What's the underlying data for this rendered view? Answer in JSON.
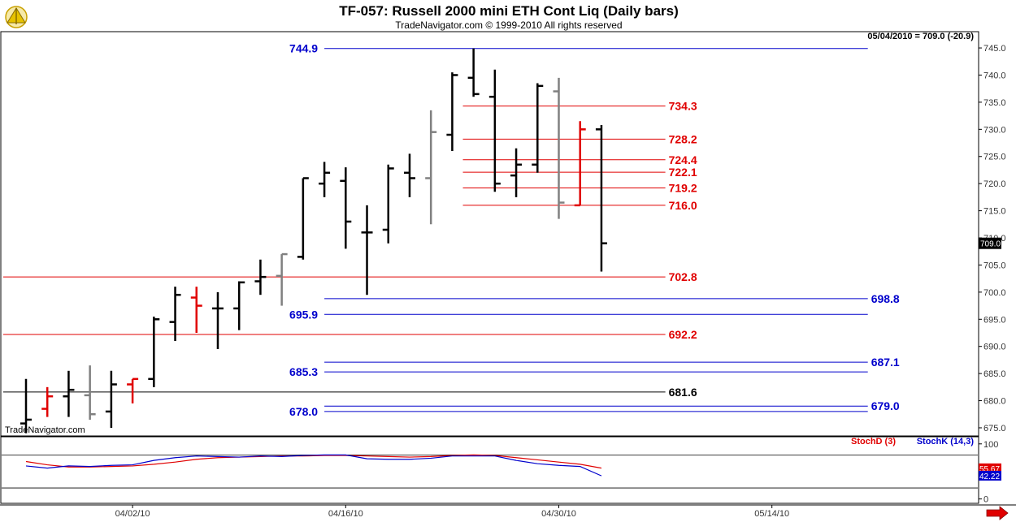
{
  "header": {
    "title": "TF-057:  Russell 2000 mini ETH Cont Liq  (Daily bars)",
    "subtitle": "TradeNavigator.com © 1999-2010 All rights reserved",
    "last_info": "05/04/2010 = 709.0 (-20.9)",
    "watermark": "TradeNavigator.com"
  },
  "colors": {
    "up": "#000000",
    "down": "#e00000",
    "inside": "#808080",
    "support": "#0000cc",
    "resistance": "#e00000",
    "neutral": "#000000"
  },
  "chart_data": [
    {
      "type": "ohlc",
      "title": "TF-057:  Russell 2000 mini ETH Cont Liq  (Daily bars)",
      "y_ticks": [
        675.0,
        680.0,
        685.0,
        690.0,
        695.0,
        700.0,
        705.0,
        710.0,
        715.0,
        720.0,
        725.0,
        730.0,
        735.0,
        740.0,
        745.0
      ],
      "ylim": [
        673.5,
        748.0
      ],
      "last_price_label": "709.0",
      "x_labels": [
        {
          "index": 5,
          "label": "04/02/10"
        },
        {
          "index": 15,
          "label": "04/16/10"
        },
        {
          "index": 25,
          "label": "04/30/10"
        },
        {
          "index": 35,
          "label": "05/14/10"
        }
      ],
      "bars": [
        {
          "open": 675.8,
          "high": 684.0,
          "low": 674.0,
          "close": 676.5,
          "color": "black"
        },
        {
          "open": 678.5,
          "high": 682.5,
          "low": 677.0,
          "close": 680.8,
          "color": "red"
        },
        {
          "open": 680.8,
          "high": 685.5,
          "low": 677.0,
          "close": 682.0,
          "color": "black"
        },
        {
          "open": 681.0,
          "high": 686.5,
          "low": 676.5,
          "close": 677.5,
          "color": "gray"
        },
        {
          "open": 678.0,
          "high": 685.5,
          "low": 675.0,
          "close": 683.0,
          "color": "black"
        },
        {
          "open": 683.0,
          "high": 684.0,
          "low": 679.5,
          "close": 684.0,
          "color": "red"
        },
        {
          "open": 684.0,
          "high": 695.5,
          "low": 682.5,
          "close": 695.0,
          "color": "black"
        },
        {
          "open": 694.5,
          "high": 701.0,
          "low": 691.0,
          "close": 699.5,
          "color": "black"
        },
        {
          "open": 699.0,
          "high": 701.0,
          "low": 692.5,
          "close": 697.5,
          "color": "red"
        },
        {
          "open": 697.0,
          "high": 700.0,
          "low": 689.5,
          "close": 697.0,
          "color": "black"
        },
        {
          "open": 697.0,
          "high": 702.0,
          "low": 693.0,
          "close": 701.8,
          "color": "black"
        },
        {
          "open": 702.0,
          "high": 706.0,
          "low": 699.5,
          "close": 702.8,
          "color": "black"
        },
        {
          "open": 703.0,
          "high": 707.0,
          "low": 697.5,
          "close": 707.0,
          "color": "gray"
        },
        {
          "open": 706.5,
          "high": 721.0,
          "low": 706.0,
          "close": 721.0,
          "color": "black"
        },
        {
          "open": 720.0,
          "high": 724.0,
          "low": 717.5,
          "close": 722.0,
          "color": "black"
        },
        {
          "open": 720.5,
          "high": 723.0,
          "low": 708.0,
          "close": 713.0,
          "color": "black"
        },
        {
          "open": 711.0,
          "high": 716.0,
          "low": 699.5,
          "close": 711.0,
          "color": "black"
        },
        {
          "open": 711.5,
          "high": 723.5,
          "low": 709.0,
          "close": 722.8,
          "color": "black"
        },
        {
          "open": 722.0,
          "high": 725.5,
          "low": 717.5,
          "close": 721.0,
          "color": "black"
        },
        {
          "open": 721.0,
          "high": 733.5,
          "low": 712.5,
          "close": 729.5,
          "color": "gray"
        },
        {
          "open": 729.0,
          "high": 740.5,
          "low": 726.0,
          "close": 740.0,
          "color": "black"
        },
        {
          "open": 739.5,
          "high": 744.9,
          "low": 736.0,
          "close": 736.5,
          "color": "black"
        },
        {
          "open": 736.0,
          "high": 741.0,
          "low": 718.5,
          "close": 720.0,
          "color": "black"
        },
        {
          "open": 721.5,
          "high": 726.5,
          "low": 717.5,
          "close": 723.5,
          "color": "black"
        },
        {
          "open": 723.5,
          "high": 738.5,
          "low": 722.0,
          "close": 738.0,
          "color": "black"
        },
        {
          "open": 737.0,
          "high": 739.5,
          "low": 713.5,
          "close": 716.5,
          "color": "gray"
        },
        {
          "open": 716.0,
          "high": 731.5,
          "low": 716.0,
          "close": 730.0,
          "color": "red"
        },
        {
          "open": 730.0,
          "high": 730.8,
          "low": 703.8,
          "close": 709.0,
          "color": "black"
        }
      ],
      "levels": [
        {
          "value": 744.9,
          "label": "744.9",
          "color": "blue",
          "from": 14,
          "to": 39.5,
          "label_side": "left"
        },
        {
          "value": 734.3,
          "label": "734.3",
          "color": "red",
          "from": 20.5,
          "to": 30,
          "label_side": "right"
        },
        {
          "value": 728.2,
          "label": "728.2",
          "color": "red",
          "from": 20.5,
          "to": 30,
          "label_side": "right"
        },
        {
          "value": 724.4,
          "label": "724.4",
          "color": "red",
          "from": 20.5,
          "to": 30,
          "label_side": "right"
        },
        {
          "value": 722.1,
          "label": "722.1",
          "color": "red",
          "from": 20.5,
          "to": 30,
          "label_side": "right"
        },
        {
          "value": 719.2,
          "label": "719.2",
          "color": "red",
          "from": 20.5,
          "to": 30,
          "label_side": "right"
        },
        {
          "value": 716.0,
          "label": "716.0",
          "color": "red",
          "from": 20.5,
          "to": 30,
          "label_side": "right"
        },
        {
          "value": 702.8,
          "label": "702.8",
          "color": "red",
          "from": 0,
          "to": 30,
          "label_side": "right"
        },
        {
          "value": 698.8,
          "label": "698.8",
          "color": "blue",
          "from": 14,
          "to": 39.5,
          "label_side": "far-right"
        },
        {
          "value": 695.9,
          "label": "695.9",
          "color": "blue",
          "from": 14,
          "to": 39.5,
          "label_side": "left"
        },
        {
          "value": 692.2,
          "label": "692.2",
          "color": "red",
          "from": 0,
          "to": 30,
          "label_side": "right"
        },
        {
          "value": 687.1,
          "label": "687.1",
          "color": "blue",
          "from": 14,
          "to": 39.5,
          "label_side": "far-right"
        },
        {
          "value": 685.3,
          "label": "685.3",
          "color": "blue",
          "from": 14,
          "to": 39.5,
          "label_side": "left"
        },
        {
          "value": 681.6,
          "label": "681.6",
          "color": "black",
          "from": 0,
          "to": 30,
          "label_side": "right"
        },
        {
          "value": 679.0,
          "label": "679.0",
          "color": "blue",
          "from": 14,
          "to": 39.5,
          "label_side": "far-right"
        },
        {
          "value": 678.0,
          "label": "678.0",
          "color": "blue",
          "from": 14,
          "to": 39.5,
          "label_side": "left"
        }
      ]
    },
    {
      "type": "line",
      "legend": [
        "StochD (3)",
        "StochK (14,3)"
      ],
      "y_ticks": [
        0,
        50,
        100
      ],
      "ylim": [
        -5,
        110
      ],
      "reference_lines": [
        20,
        80
      ],
      "last_values": {
        "stochD": "55.67",
        "stochK": "42.22"
      },
      "series": [
        {
          "name": "StochD (3)",
          "color": "#e00000",
          "values": [
            68,
            62,
            58,
            58,
            59,
            60,
            63,
            67,
            72,
            75,
            76,
            77,
            78,
            78,
            79,
            79,
            78,
            77,
            76,
            77,
            79,
            80,
            79,
            75,
            71,
            67,
            63,
            56
          ]
        },
        {
          "name": "StochK (14,3)",
          "color": "#0000cc",
          "values": [
            60,
            56,
            60,
            59,
            61,
            62,
            70,
            75,
            78,
            77,
            76,
            78,
            77,
            79,
            80,
            80,
            73,
            72,
            72,
            74,
            78,
            78,
            78,
            70,
            64,
            61,
            59,
            42
          ]
        }
      ]
    }
  ],
  "footer": {
    "scroll_arrow": "right-arrow-icon"
  }
}
